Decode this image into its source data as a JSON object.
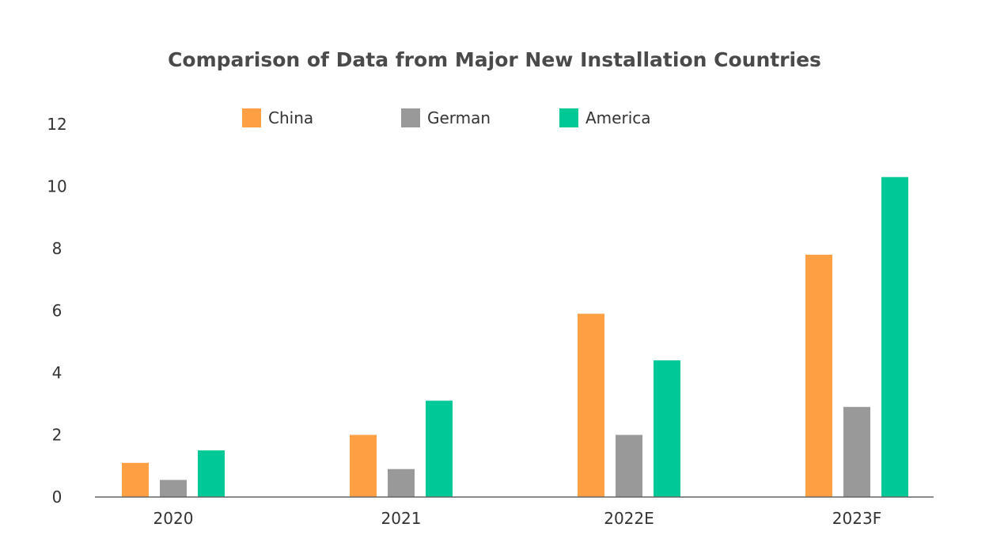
{
  "chart_data": {
    "type": "bar",
    "title": "Comparison of Data from Major New Installation Countries",
    "categories": [
      "2020",
      "2021",
      "2022E",
      "2023F"
    ],
    "series": [
      {
        "name": "China",
        "color": "#FF9F43",
        "values": [
          1.1,
          2.0,
          5.9,
          7.8
        ]
      },
      {
        "name": "German",
        "color": "#999999",
        "values": [
          0.55,
          0.9,
          2.0,
          2.9
        ]
      },
      {
        "name": "America",
        "color": "#00C896",
        "values": [
          1.5,
          3.1,
          4.4,
          10.3
        ]
      }
    ],
    "ylim": [
      0,
      12
    ],
    "yticks": [
      0,
      2,
      4,
      6,
      8,
      10,
      12
    ],
    "xlabel": "",
    "ylabel": "",
    "grid": false,
    "legend_position": "top"
  }
}
